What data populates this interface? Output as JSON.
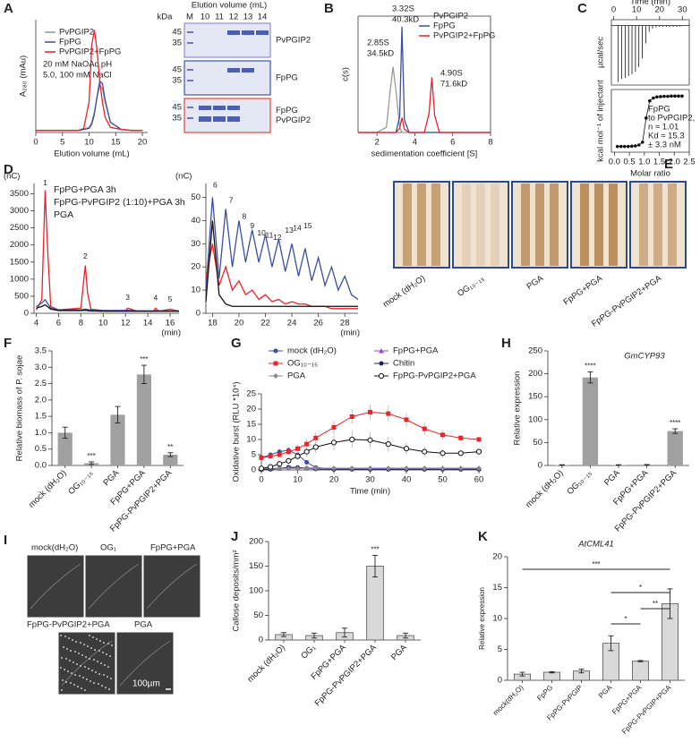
{
  "chart_data": [
    {
      "panel": "A",
      "type": "line",
      "xlabel": "Elution volume (mL)",
      "ylabel": "A₂₈₀ (mAu)",
      "xlim": [
        0,
        21
      ],
      "xticks": [
        0,
        5,
        10,
        15,
        20
      ],
      "ylim": [
        0,
        110
      ],
      "x": [
        0,
        2,
        4,
        6,
        8,
        9,
        10,
        10.5,
        11,
        11.5,
        12,
        12.5,
        13,
        14,
        16,
        18,
        20
      ],
      "series": [
        {
          "name": "PvPGIP2",
          "color": "#999999",
          "values": [
            2,
            2,
            2,
            2,
            2,
            3,
            5,
            10,
            20,
            35,
            45,
            43,
            30,
            10,
            3,
            2,
            2
          ]
        },
        {
          "name": "FpPG",
          "color": "#3a4fa5",
          "values": [
            2,
            2,
            2,
            2,
            2,
            3,
            4,
            8,
            18,
            35,
            50,
            48,
            32,
            10,
            3,
            2,
            2
          ]
        },
        {
          "name": "PvPGIP2+FpPG",
          "color": "#e8222a",
          "values": [
            2,
            2,
            2,
            2,
            2,
            4,
            30,
            85,
            100,
            80,
            50,
            30,
            15,
            5,
            3,
            2,
            2
          ]
        }
      ],
      "annotations": [
        {
          "text": "20 mM NaOAc pH",
          "color": "#222222"
        },
        {
          "text": "5.0, 100 mM NaCl",
          "color": "#222222"
        }
      ]
    },
    {
      "panel": "B",
      "type": "line",
      "xlabel": "sedimentation coefficient [S]",
      "ylabel": "c(s)",
      "xlim": [
        1,
        8
      ],
      "xticks": [
        2,
        4,
        6,
        8
      ],
      "ylim": [
        0,
        110
      ],
      "x": [
        1,
        2,
        2.5,
        2.7,
        2.85,
        3.0,
        3.2,
        3.32,
        3.45,
        3.7,
        4.5,
        4.75,
        4.9,
        5.05,
        5.3,
        6,
        7,
        8
      ],
      "series": [
        {
          "name": "PvPGIP2",
          "color": "#999999",
          "values": [
            0,
            0,
            5,
            40,
            62,
            40,
            5,
            0,
            0,
            0,
            0,
            0,
            0,
            0,
            0,
            0,
            0,
            0
          ]
        },
        {
          "name": "FpPG",
          "color": "#3a4fa5",
          "values": [
            0,
            0,
            0,
            0,
            0,
            0,
            15,
            100,
            12,
            0,
            0,
            0,
            0,
            0,
            0,
            0,
            0,
            0
          ]
        },
        {
          "name": "PvPGIP2+FpPG",
          "color": "#e8222a",
          "values": [
            0,
            0,
            0,
            0,
            0,
            0,
            4,
            14,
            3,
            0,
            0,
            18,
            52,
            16,
            0,
            0,
            0,
            0
          ]
        }
      ],
      "annotations": [
        {
          "text": "2.85S",
          "color": "#999999"
        },
        {
          "text": "34.5kD",
          "color": "#999999"
        },
        {
          "text": "3.32S",
          "color": "#3a4fa5"
        },
        {
          "text": "40.3kD",
          "color": "#3a4fa5"
        },
        {
          "text": "4.90S",
          "color": "#e8222a"
        },
        {
          "text": "71.6kD",
          "color": "#e8222a"
        }
      ]
    },
    {
      "panel": "C",
      "type": "spikes",
      "xlabel": "Time (min)",
      "ylabel": "µcal/sec",
      "xlim": [
        -1,
        33
      ],
      "xticks": [
        0,
        10,
        20,
        30
      ],
      "ylim": [
        -1,
        0.1
      ],
      "x": [
        2,
        3.5,
        5,
        6.5,
        8,
        9.5,
        11,
        12.5,
        14,
        15.5,
        17,
        18.5,
        20,
        21.5,
        23,
        24.5,
        26,
        27.5,
        29
      ],
      "values": [
        -0.95,
        -0.9,
        -0.88,
        -0.85,
        -0.82,
        -0.78,
        -0.7,
        -0.55,
        -0.3,
        -0.1,
        -0.05,
        -0.03,
        -0.02,
        -0.02,
        -0.02,
        -0.02,
        -0.02,
        -0.02,
        -0.02
      ]
    },
    {
      "type": "scatter",
      "xlabel": "Molar ratio",
      "ylabel": "kcal mol⁻¹ of injectant",
      "xlim": [
        -0.1,
        2.5
      ],
      "xticks": [
        {
          "value": 0,
          "label": "0.0"
        },
        0.5,
        {
          "value": 1,
          "label": "1.0"
        },
        1.5,
        {
          "value": 2,
          "label": "2.0"
        },
        2.5
      ],
      "ylim": [
        -20,
        2
      ],
      "x": [
        0.1,
        0.22,
        0.34,
        0.46,
        0.58,
        0.7,
        0.82,
        0.94,
        1.06,
        1.18,
        1.3,
        1.42,
        1.54,
        1.66,
        1.78,
        1.9,
        2.02,
        2.14,
        2.26
      ],
      "values": [
        -18,
        -18,
        -18,
        -18,
        -17.9,
        -17.8,
        -17.5,
        -16.5,
        -8,
        -2,
        -1,
        -0.6,
        -0.5,
        -0.4,
        -0.4,
        -0.3,
        -0.3,
        -0.3,
        -0.3
      ],
      "annotations": [
        {
          "text": "FpPG",
          "color": "#222222"
        },
        {
          "text": "to PvPGIP2,",
          "color": "#222222"
        },
        {
          "text": "n ≈ 1.01",
          "color": "#222222"
        },
        {
          "text": "Kd ≈ 15.3",
          "color": "#222222"
        },
        {
          "text": "± 3.3 nM",
          "color": "#222222"
        }
      ]
    },
    {
      "panel": "D",
      "type": "line",
      "xlabel": "(min)",
      "ylabel": "(nC)",
      "xlim": [
        3.8,
        16.8
      ],
      "xticks": [
        4,
        6,
        8,
        10,
        12,
        14,
        16
      ],
      "ylim": [
        0,
        3800
      ],
      "yticks": [
        0,
        500,
        1000,
        1500,
        2000,
        2500,
        3000,
        3500
      ],
      "x": [
        4,
        4.5,
        4.8,
        5,
        5.3,
        6,
        8,
        8.4,
        8.6,
        8.9,
        10,
        12,
        12.2,
        13,
        14.5,
        14.7,
        15,
        16,
        16.8
      ],
      "series": [
        {
          "name": "FpPG+PGA 3h",
          "color": "#e8222a",
          "values": [
            100,
            400,
            3600,
            2000,
            200,
            100,
            150,
            1400,
            600,
            120,
            80,
            80,
            150,
            70,
            60,
            150,
            60,
            120,
            60
          ]
        },
        {
          "name": "FpPG-PvPGIP2 (1:10)+PGA 3h",
          "color": "#3a4fa5",
          "values": [
            200,
            300,
            400,
            300,
            150,
            100,
            100,
            120,
            110,
            90,
            80,
            80,
            90,
            70,
            70,
            80,
            70,
            70,
            70
          ]
        },
        {
          "name": "PGA",
          "color": "#111111",
          "values": [
            150,
            200,
            250,
            200,
            120,
            80,
            80,
            90,
            80,
            70,
            60,
            60,
            60,
            60,
            60,
            60,
            60,
            60,
            60
          ]
        }
      ],
      "peak_labels": [
        "1",
        "2",
        "3",
        "4",
        "5"
      ]
    },
    {
      "type": "line",
      "xlabel": "(min)",
      "ylabel": "(nC)",
      "xlim": [
        17.5,
        29
      ],
      "xticks": [
        18,
        20,
        22,
        24,
        26,
        28
      ],
      "ylim": [
        0,
        56
      ],
      "yticks": [
        0,
        10,
        20,
        30,
        40,
        50
      ],
      "x": [
        17.5,
        18,
        18.5,
        19,
        19.5,
        20,
        20.5,
        21,
        21.5,
        22,
        22.5,
        23,
        23.5,
        24,
        24.5,
        25,
        25.5,
        26,
        26.5,
        27,
        27.5,
        28,
        28.5,
        29
      ],
      "series": [
        {
          "color": "#3a4fa5",
          "values": [
            10,
            50,
            15,
            45,
            20,
            40,
            22,
            36,
            22,
            34,
            20,
            32,
            18,
            30,
            16,
            28,
            14,
            24,
            12,
            20,
            10,
            16,
            8,
            6
          ]
        },
        {
          "color": "#e8222a",
          "values": [
            15,
            30,
            12,
            20,
            10,
            14,
            8,
            10,
            6,
            8,
            5,
            6,
            4,
            5,
            4,
            4,
            3,
            3,
            3,
            2,
            2,
            2,
            2,
            2
          ]
        },
        {
          "color": "#111111",
          "values": [
            5,
            40,
            8,
            4,
            3,
            3,
            3,
            3,
            3,
            3,
            3,
            3,
            3,
            3,
            3,
            3,
            3,
            3,
            3,
            3,
            3,
            3,
            3,
            3
          ]
        }
      ],
      "peak_labels": [
        "6",
        "7",
        "8",
        "9",
        "10",
        "11",
        "12",
        "13",
        "14",
        "15"
      ]
    },
    {
      "panel": "F",
      "type": "bar",
      "ylabel": "Relative biomass of P. sojae",
      "color": "#a0a0a0",
      "categories": [
        "mock (dH₂O)",
        "OG₁₀₋₁₅",
        "PGA",
        "FpPG+PGA",
        "FpPG-PvPGIP2+PGA"
      ],
      "values": [
        1.0,
        0.07,
        1.55,
        2.78,
        0.33
      ],
      "errors": [
        0.17,
        0.04,
        0.25,
        0.28,
        0.06
      ],
      "significance": [
        null,
        "***",
        null,
        "***",
        "**"
      ],
      "ylim": [
        0,
        3.5
      ],
      "yticks": [
        {
          "value": 0,
          "label": "0.0"
        },
        0.5,
        {
          "value": 1,
          "label": "1.0"
        },
        1.5,
        {
          "value": 2,
          "label": "2.0"
        },
        2.5,
        {
          "value": 3,
          "label": "3.0"
        },
        3.5
      ]
    },
    {
      "panel": "G",
      "type": "line",
      "xlabel": "Time (min)",
      "ylabel": "Oxidative burst (RLU *10⁴)",
      "xlim": [
        0,
        60
      ],
      "xticks": [
        0,
        10,
        20,
        30,
        40,
        50,
        60
      ],
      "ylim": [
        0,
        25
      ],
      "yticks": [
        0,
        5,
        10,
        15,
        20,
        25
      ],
      "x": [
        0,
        2.5,
        5,
        7.5,
        10,
        12.5,
        15,
        20,
        25,
        30,
        35,
        40,
        45,
        50,
        55,
        60
      ],
      "series": [
        {
          "name": "mock (dH₂O)",
          "color": "#3b4ba3",
          "marker": "circle",
          "values": [
            4,
            5,
            6,
            6.5,
            5,
            2.5,
            0.8,
            0.3,
            0.3,
            0.3,
            0.3,
            0.3,
            0.3,
            0.3,
            0.3,
            0.3
          ],
          "errors": [
            0.6,
            0.6,
            0.8,
            1,
            0.8,
            0.5,
            0.3,
            0.3,
            0.3,
            0.3,
            0.3,
            0.3,
            0.3,
            0.3,
            0.3,
            0.3
          ]
        },
        {
          "name": "FpPG+PGA",
          "color": "#9b4fc8",
          "marker": "triangle",
          "values": [
            0.3,
            0.4,
            0.5,
            0.6,
            0.7,
            0.7,
            0.6,
            0.6,
            0.6,
            0.6,
            0.6,
            0.6,
            0.6,
            0.6,
            0.6,
            0.6
          ],
          "errors": [
            0.3,
            0.3,
            0.3,
            0.3,
            0.3,
            0.3,
            0.3,
            0.3,
            0.3,
            0.3,
            0.3,
            0.3,
            0.3,
            0.3,
            0.3,
            0.3
          ]
        },
        {
          "name": "OG₁₀₋₁₅",
          "color": "#e5262b",
          "marker": "square",
          "values": [
            4,
            4.5,
            5,
            6,
            7,
            8.5,
            10.5,
            14,
            17.5,
            19,
            18.5,
            16.5,
            13.5,
            11.5,
            10.5,
            10
          ],
          "errors": [
            0.5,
            0.6,
            0.8,
            1,
            1.2,
            1.5,
            1.8,
            2.2,
            2.5,
            2.5,
            2.5,
            2.3,
            2,
            1.5,
            1,
            0.8
          ]
        },
        {
          "name": "Chitin",
          "color": "#1d2266",
          "marker": "circle",
          "values": [
            0.1,
            0.2,
            0.5,
            0.9,
            0.8,
            0.5,
            0.3,
            0.2,
            0.2,
            0.2,
            0.2,
            0.2,
            0.2,
            0.2,
            0.2,
            0.2
          ],
          "errors": [
            0.2,
            0.2,
            0.2,
            0.2,
            0.2,
            0.2,
            0.2,
            0.2,
            0.2,
            0.2,
            0.2,
            0.2,
            0.2,
            0.2,
            0.2,
            0.2
          ]
        },
        {
          "name": "PGA",
          "color": "#888888",
          "marker": "diamond",
          "values": [
            0.5,
            0.5,
            0.5,
            0.5,
            0.5,
            0.5,
            0.5,
            0.5,
            0.5,
            0.5,
            0.5,
            0.5,
            0.5,
            0.5,
            0.5,
            0.5
          ],
          "errors": [
            0.3,
            0.3,
            0.3,
            0.3,
            0.3,
            0.3,
            0.3,
            0.3,
            0.3,
            0.3,
            0.3,
            0.3,
            0.3,
            0.3,
            0.3,
            0.3
          ]
        },
        {
          "name": "FpPG-PvPGIP2+PGA",
          "color": "#111111",
          "marker": "open-circle",
          "values": [
            0.5,
            1,
            2,
            3,
            4.5,
            6,
            7.5,
            9,
            10,
            9.8,
            8.5,
            7,
            6,
            5.5,
            5.5,
            6
          ],
          "errors": [
            0.5,
            0.6,
            0.8,
            1,
            1.3,
            1.6,
            2,
            2.5,
            2.8,
            2.8,
            2.5,
            2,
            1.6,
            1.3,
            1,
            1
          ]
        }
      ]
    },
    {
      "panel": "H",
      "type": "bar",
      "title": "GmCYP93",
      "ylabel": "Relative expression",
      "color": "#a0a0a0",
      "categories": [
        "mock (dH₂O)",
        "OG₁₀₋₁₅",
        "PGA",
        "FpPG+PGA",
        "FpPG-PvPGIP2+PGA"
      ],
      "values": [
        1,
        192,
        1,
        1.5,
        75
      ],
      "errors": [
        0.5,
        12,
        0.5,
        0.5,
        5
      ],
      "significance": [
        null,
        "****",
        null,
        null,
        "****"
      ],
      "ylim": [
        0,
        250
      ],
      "yticks": [
        0,
        50,
        100,
        150,
        200,
        250
      ]
    },
    {
      "panel": "J",
      "type": "bar",
      "ylabel": "Callose deposits/mm²",
      "color": "#d9d9d9",
      "edgecolor": "#555555",
      "categories": [
        "mock (dH₂O)",
        "OG₁",
        "FpPG+PGA",
        "FpPG-PvPGIP2+PGA",
        "PGA"
      ],
      "values": [
        11,
        9,
        15,
        150,
        9
      ],
      "errors": [
        4,
        5,
        9,
        22,
        5
      ],
      "significance": [
        null,
        null,
        null,
        "***",
        null
      ],
      "ylim": [
        0,
        200
      ],
      "yticks": [
        0,
        50,
        100,
        150,
        200
      ]
    },
    {
      "panel": "K",
      "type": "bar",
      "title": "AtCML41",
      "ylabel": "Relative expression",
      "color": "#d9d9d9",
      "edgecolor": "#555555",
      "categories": [
        "mock(dH₂O)",
        "FpPG",
        "FpPG-PvPGIP",
        "PGA",
        "FpPG+PGA",
        "FpPG-PvPGIP+PGA"
      ],
      "values": [
        1.0,
        1.3,
        1.5,
        6.0,
        3.1,
        12.4
      ],
      "errors": [
        0.3,
        0.1,
        0.3,
        1.2,
        0.1,
        2.4
      ],
      "significance_brackets": [
        "***",
        "*",
        "**",
        "*"
      ],
      "ylim": [
        0,
        20
      ],
      "yticks": [
        0,
        5,
        10,
        15,
        20
      ]
    }
  ],
  "gel": {
    "title": "Elution volume (mL)",
    "kda": "kDa",
    "lanes": [
      "M",
      "10",
      "11",
      "12",
      "13",
      "14"
    ],
    "markers": [
      "45",
      "35"
    ],
    "rows": [
      [
        "PvPGIP2"
      ],
      [
        "FpPG"
      ],
      [
        "FpPG",
        "PvPGIP2"
      ]
    ]
  },
  "photos": {
    "panel": "E",
    "labels": [
      "mock (dH₂O)",
      "OG₁₀₋₁₅",
      "PGA",
      "FpPG+PGA",
      "FpPG-PvPGIP2+PGA"
    ]
  },
  "micrographs": {
    "panel": "I",
    "labels": [
      "mock(dH₂O)",
      "OG₁",
      "FpPG+PGA",
      "FpPG-PvPGIP2+PGA",
      "PGA"
    ],
    "scale_bar": "100µm"
  }
}
